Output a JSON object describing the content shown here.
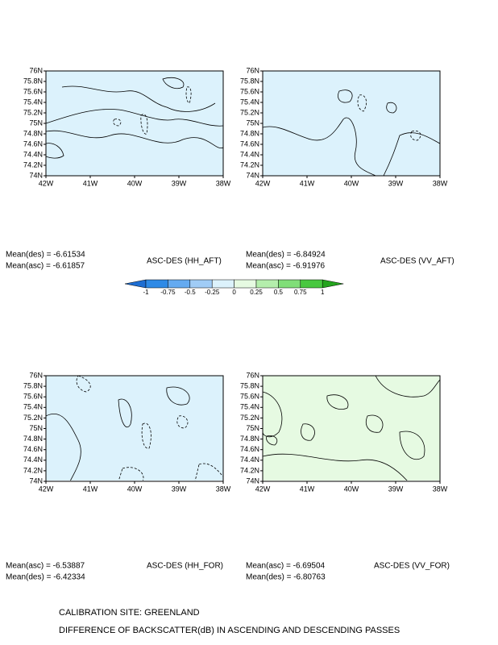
{
  "axis_labels": {
    "x": [
      "42W",
      "41W",
      "40W",
      "39W",
      "38W"
    ],
    "y": [
      "76N",
      "75.8N",
      "75.6N",
      "75.4N",
      "75.2N",
      "75N",
      "74.8N",
      "74.6N",
      "74.4N",
      "74.2N",
      "74N"
    ]
  },
  "panels": [
    {
      "title": "ASC-DES (HH_AFT)",
      "mean_lines": [
        "Mean(des) = -6.61534",
        "Mean(asc) = -6.61857"
      ]
    },
    {
      "title": "ASC-DES (VV_AFT)",
      "mean_lines": [
        "Mean(des) = -6.84924",
        "Mean(asc) = -6.91976"
      ]
    },
    {
      "title": "ASC-DES (HH_FOR)",
      "mean_lines": [
        "Mean(asc) = -6.53887",
        "Mean(des) = -6.42334"
      ]
    },
    {
      "title": "ASC-DES (VV_FOR)",
      "mean_lines": [
        "Mean(asc) = -6.69504",
        "Mean(des) = -6.80763"
      ]
    }
  ],
  "colorbar": {
    "levels": [
      -1,
      -0.75,
      -0.5,
      -0.25,
      0,
      0.25,
      0.5,
      0.75,
      1
    ],
    "colors": [
      "#1e6ed2",
      "#2e8ae6",
      "#64aaf0",
      "#a0ccf6",
      "#dcf2fc",
      "#e6fae2",
      "#b4eeac",
      "#80de78",
      "#48c840",
      "#24a41e"
    ]
  },
  "captions": [
    "CALIBRATION SITE: GREENLAND",
    "DIFFERENCE OF BACKSCATTER(dB) IN ASCENDING AND DESCENDING PASSES"
  ]
}
